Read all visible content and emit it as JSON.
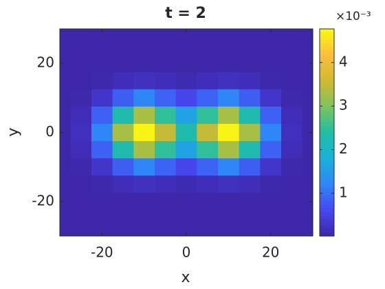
{
  "chart_data": {
    "type": "contour",
    "title": "t = 2",
    "x_label": "x",
    "y_label": "y",
    "x": [
      -30,
      -25,
      -20,
      -15,
      -10,
      -5,
      0,
      5,
      10,
      15,
      20,
      25,
      30
    ],
    "y": [
      30,
      25,
      20,
      15,
      10,
      5,
      0,
      -5,
      -10,
      -15,
      -20,
      -25,
      -30
    ],
    "z": [
      [
        0,
        0,
        0,
        0,
        0,
        0,
        0,
        0,
        0,
        0,
        0,
        0,
        0
      ],
      [
        0,
        0,
        0,
        0,
        0,
        0,
        0,
        0,
        0,
        0,
        0,
        0,
        0
      ],
      [
        0,
        0,
        0,
        1e-05,
        2e-05,
        1e-05,
        1e-05,
        1e-05,
        2e-05,
        1e-05,
        0,
        0,
        0
      ],
      [
        0,
        1e-05,
        5e-05,
        0.00015,
        0.00021,
        0.00015,
        0.0001,
        0.00015,
        0.00021,
        0.00015,
        5e-05,
        1e-05,
        0
      ],
      [
        0,
        5e-05,
        0.0003,
        0.00082,
        0.0012,
        0.00087,
        0.00057,
        0.00087,
        0.0012,
        0.00082,
        0.0003,
        5e-05,
        0
      ],
      [
        1e-05,
        0.00014,
        0.00085,
        0.0023,
        0.0033,
        0.0025,
        0.0016,
        0.0025,
        0.0033,
        0.0023,
        0.00085,
        0.00014,
        1e-05
      ],
      [
        2e-05,
        0.0002,
        0.0012,
        0.0033,
        0.0047,
        0.0035,
        0.0023,
        0.0035,
        0.0047,
        0.0033,
        0.0012,
        0.0002,
        2e-05
      ],
      [
        1e-05,
        0.00014,
        0.00085,
        0.0023,
        0.0033,
        0.0025,
        0.0016,
        0.0025,
        0.0033,
        0.0023,
        0.00085,
        0.00014,
        1e-05
      ],
      [
        0,
        5e-05,
        0.0003,
        0.00082,
        0.0012,
        0.00087,
        0.00057,
        0.00087,
        0.0012,
        0.00082,
        0.0003,
        5e-05,
        0
      ],
      [
        0,
        1e-05,
        5e-05,
        0.00015,
        0.00021,
        0.00015,
        0.0001,
        0.00015,
        0.00021,
        0.00015,
        5e-05,
        1e-05,
        0
      ],
      [
        0,
        0,
        0,
        1e-05,
        2e-05,
        1e-05,
        1e-05,
        1e-05,
        2e-05,
        1e-05,
        0,
        0,
        0
      ],
      [
        0,
        0,
        0,
        0,
        0,
        0,
        0,
        0,
        0,
        0,
        0,
        0,
        0
      ],
      [
        0,
        0,
        0,
        0,
        0,
        0,
        0,
        0,
        0,
        0,
        0,
        0,
        0
      ]
    ],
    "xlim": [
      -30,
      30
    ],
    "ylim": [
      -30,
      30
    ],
    "xticks": [
      -20,
      0,
      20
    ],
    "yticks": [
      -20,
      0,
      20
    ],
    "zlim": [
      2e-05,
      0.00477
    ],
    "colorbar_ticks": [
      {
        "value": 0.001,
        "label": "1"
      },
      {
        "value": 0.002,
        "label": "2"
      },
      {
        "value": 0.003,
        "label": "3"
      },
      {
        "value": 0.004,
        "label": "4"
      }
    ],
    "colorbar_exponent": "×10⁻³",
    "colormap": [
      "#3e26a8",
      "#4748f0",
      "#2e87f7",
      "#1ab0da",
      "#20bea6",
      "#7cc45c",
      "#d0ba30",
      "#fbbf3c",
      "#f9fb0e"
    ]
  }
}
